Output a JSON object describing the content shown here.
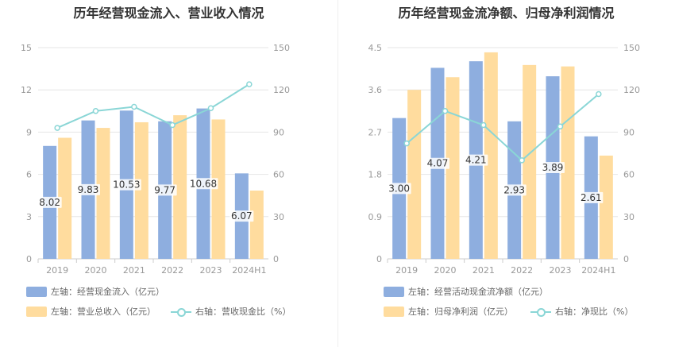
{
  "colors": {
    "bar_primary": "#8eaedf",
    "bar_secondary": "#ffdc9e",
    "line": "#8ad6d6",
    "axis_text": "#999999",
    "grid": "#e6e6e6",
    "title": "#333333"
  },
  "chart_data": [
    {
      "type": "bar",
      "title": "历年经营现金流入、营业收入情况",
      "categories": [
        "2019",
        "2020",
        "2021",
        "2022",
        "2023",
        "2024H1"
      ],
      "left_axis": {
        "ylim": [
          0,
          15
        ],
        "ticks": [
          "0",
          "3",
          "6",
          "9",
          "12",
          "15"
        ]
      },
      "right_axis": {
        "ylim": [
          0,
          150
        ],
        "ticks": [
          "0",
          "30",
          "60",
          "90",
          "120",
          "150"
        ]
      },
      "series": [
        {
          "name": "左轴：经营现金流入（亿元）",
          "kind": "bar",
          "axis": "left",
          "color": "#8eaedf",
          "values": [
            8.02,
            9.83,
            10.53,
            9.77,
            10.68,
            6.07
          ],
          "labels": [
            "8.02",
            "9.83",
            "10.53",
            "9.77",
            "10.68",
            "6.07"
          ]
        },
        {
          "name": "左轴：营业总收入（亿元）",
          "kind": "bar",
          "axis": "left",
          "color": "#ffdc9e",
          "values": [
            8.6,
            9.3,
            9.7,
            10.2,
            9.9,
            4.85
          ]
        },
        {
          "name": "右轴：营收现金比（%）",
          "kind": "line",
          "axis": "right",
          "color": "#8ad6d6",
          "values": [
            93,
            105,
            108,
            95,
            107,
            124
          ]
        }
      ],
      "grid": true,
      "legend": "bottom-left"
    },
    {
      "type": "bar",
      "title": "历年经营现金流净额、归母净利润情况",
      "categories": [
        "2019",
        "2020",
        "2021",
        "2022",
        "2023",
        "2024H1"
      ],
      "left_axis": {
        "ylim": [
          0,
          4.5
        ],
        "ticks": [
          "0",
          "0.9",
          "1.8",
          "2.7",
          "3.6",
          "4.5"
        ]
      },
      "right_axis": {
        "ylim": [
          0,
          150
        ],
        "ticks": [
          "0",
          "30",
          "60",
          "90",
          "120",
          "150"
        ]
      },
      "series": [
        {
          "name": "左轴：经营活动现金流净额（亿元）",
          "kind": "bar",
          "axis": "left",
          "color": "#8eaedf",
          "values": [
            3.0,
            4.07,
            4.21,
            2.93,
            3.89,
            2.61
          ],
          "labels": [
            "3.00",
            "4.07",
            "4.21",
            "2.93",
            "3.89",
            "2.61"
          ]
        },
        {
          "name": "左轴：归母净利润（亿元）",
          "kind": "bar",
          "axis": "left",
          "color": "#ffdc9e",
          "values": [
            3.6,
            3.87,
            4.4,
            4.13,
            4.1,
            2.2
          ]
        },
        {
          "name": "右轴：净现比（%）",
          "kind": "line",
          "axis": "right",
          "color": "#8ad6d6",
          "values": [
            82,
            105,
            95,
            70,
            94,
            117
          ]
        }
      ],
      "grid": true,
      "legend": "bottom-left"
    }
  ]
}
